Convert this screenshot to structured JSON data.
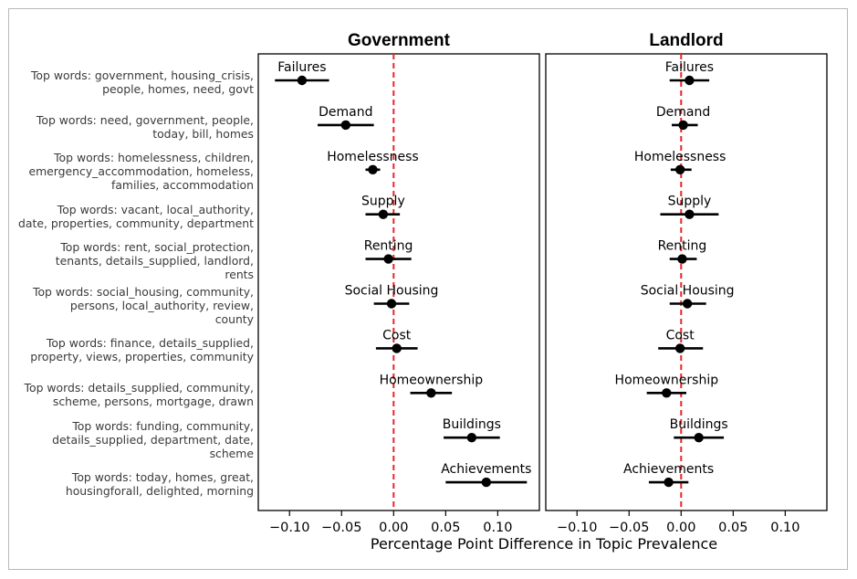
{
  "chart_data": {
    "type": "scatter",
    "subtype": "coefficient-plot-with-confidence-intervals",
    "xlabel": "Percentage Point Difference in Topic Prevalence",
    "xlim": [
      -0.13,
      0.14
    ],
    "xticks": [
      -0.1,
      -0.05,
      0.0,
      0.05,
      0.1
    ],
    "xtick_labels": [
      "−0.10",
      "−0.05",
      "0.00",
      "0.05",
      "0.10"
    ],
    "reference_line": {
      "x": 0,
      "style": "dashed",
      "color": "#e8262b"
    },
    "panels": [
      {
        "title": "Government",
        "points": [
          {
            "topic": "Failures",
            "estimate": -0.088,
            "lower": -0.114,
            "upper": -0.062
          },
          {
            "topic": "Demand",
            "estimate": -0.046,
            "lower": -0.073,
            "upper": -0.019
          },
          {
            "topic": "Homelessness",
            "estimate": -0.02,
            "lower": -0.027,
            "upper": -0.013
          },
          {
            "topic": "Supply",
            "estimate": -0.01,
            "lower": -0.027,
            "upper": 0.006
          },
          {
            "topic": "Renting",
            "estimate": -0.005,
            "lower": -0.027,
            "upper": 0.017
          },
          {
            "topic": "Social Housing",
            "estimate": -0.002,
            "lower": -0.019,
            "upper": 0.015
          },
          {
            "topic": "Cost",
            "estimate": 0.003,
            "lower": -0.017,
            "upper": 0.023
          },
          {
            "topic": "Homeownership",
            "estimate": 0.036,
            "lower": 0.016,
            "upper": 0.056
          },
          {
            "topic": "Buildings",
            "estimate": 0.075,
            "lower": 0.048,
            "upper": 0.102
          },
          {
            "topic": "Achievements",
            "estimate": 0.089,
            "lower": 0.05,
            "upper": 0.128
          }
        ]
      },
      {
        "title": "Landlord",
        "points": [
          {
            "topic": "Failures",
            "estimate": 0.008,
            "lower": -0.011,
            "upper": 0.027
          },
          {
            "topic": "Demand",
            "estimate": 0.002,
            "lower": -0.009,
            "upper": 0.016
          },
          {
            "topic": "Homelessness",
            "estimate": -0.001,
            "lower": -0.01,
            "upper": 0.01
          },
          {
            "topic": "Supply",
            "estimate": 0.008,
            "lower": -0.02,
            "upper": 0.036
          },
          {
            "topic": "Renting",
            "estimate": 0.001,
            "lower": -0.011,
            "upper": 0.015
          },
          {
            "topic": "Social Housing",
            "estimate": 0.006,
            "lower": -0.011,
            "upper": 0.024
          },
          {
            "topic": "Cost",
            "estimate": -0.001,
            "lower": -0.022,
            "upper": 0.021
          },
          {
            "topic": "Homeownership",
            "estimate": -0.014,
            "lower": -0.033,
            "upper": 0.005
          },
          {
            "topic": "Buildings",
            "estimate": 0.017,
            "lower": -0.007,
            "upper": 0.041
          },
          {
            "topic": "Achievements",
            "estimate": -0.012,
            "lower": -0.031,
            "upper": 0.007
          }
        ]
      }
    ],
    "row_labels": [
      [
        "Top words: government, housing_crisis,",
        "people, homes, need, govt"
      ],
      [
        "Top words: need, government, people,",
        "today, bill, homes"
      ],
      [
        "Top words: homelessness, children,",
        "emergency_accommodation, homeless,",
        "families, accommodation"
      ],
      [
        "Top words: vacant, local_authority,",
        "date, properties, community, department"
      ],
      [
        "Top words: rent, social_protection,",
        "tenants, details_supplied, landlord,",
        "rents"
      ],
      [
        "Top words: social_housing, community,",
        "persons, local_authority, review,",
        "county"
      ],
      [
        "Top words: finance, details_supplied,",
        "property, views, properties, community"
      ],
      [
        "Top words: details_supplied, community,",
        "scheme, persons, mortgage, drawn"
      ],
      [
        "Top words: funding, community,",
        "details_supplied, department, date,",
        "scheme"
      ],
      [
        "Top words: today, homes, great,",
        "housingforall, delighted, morning"
      ]
    ],
    "colors": {
      "points": "#000000",
      "zero_line": "#e8262b"
    }
  }
}
